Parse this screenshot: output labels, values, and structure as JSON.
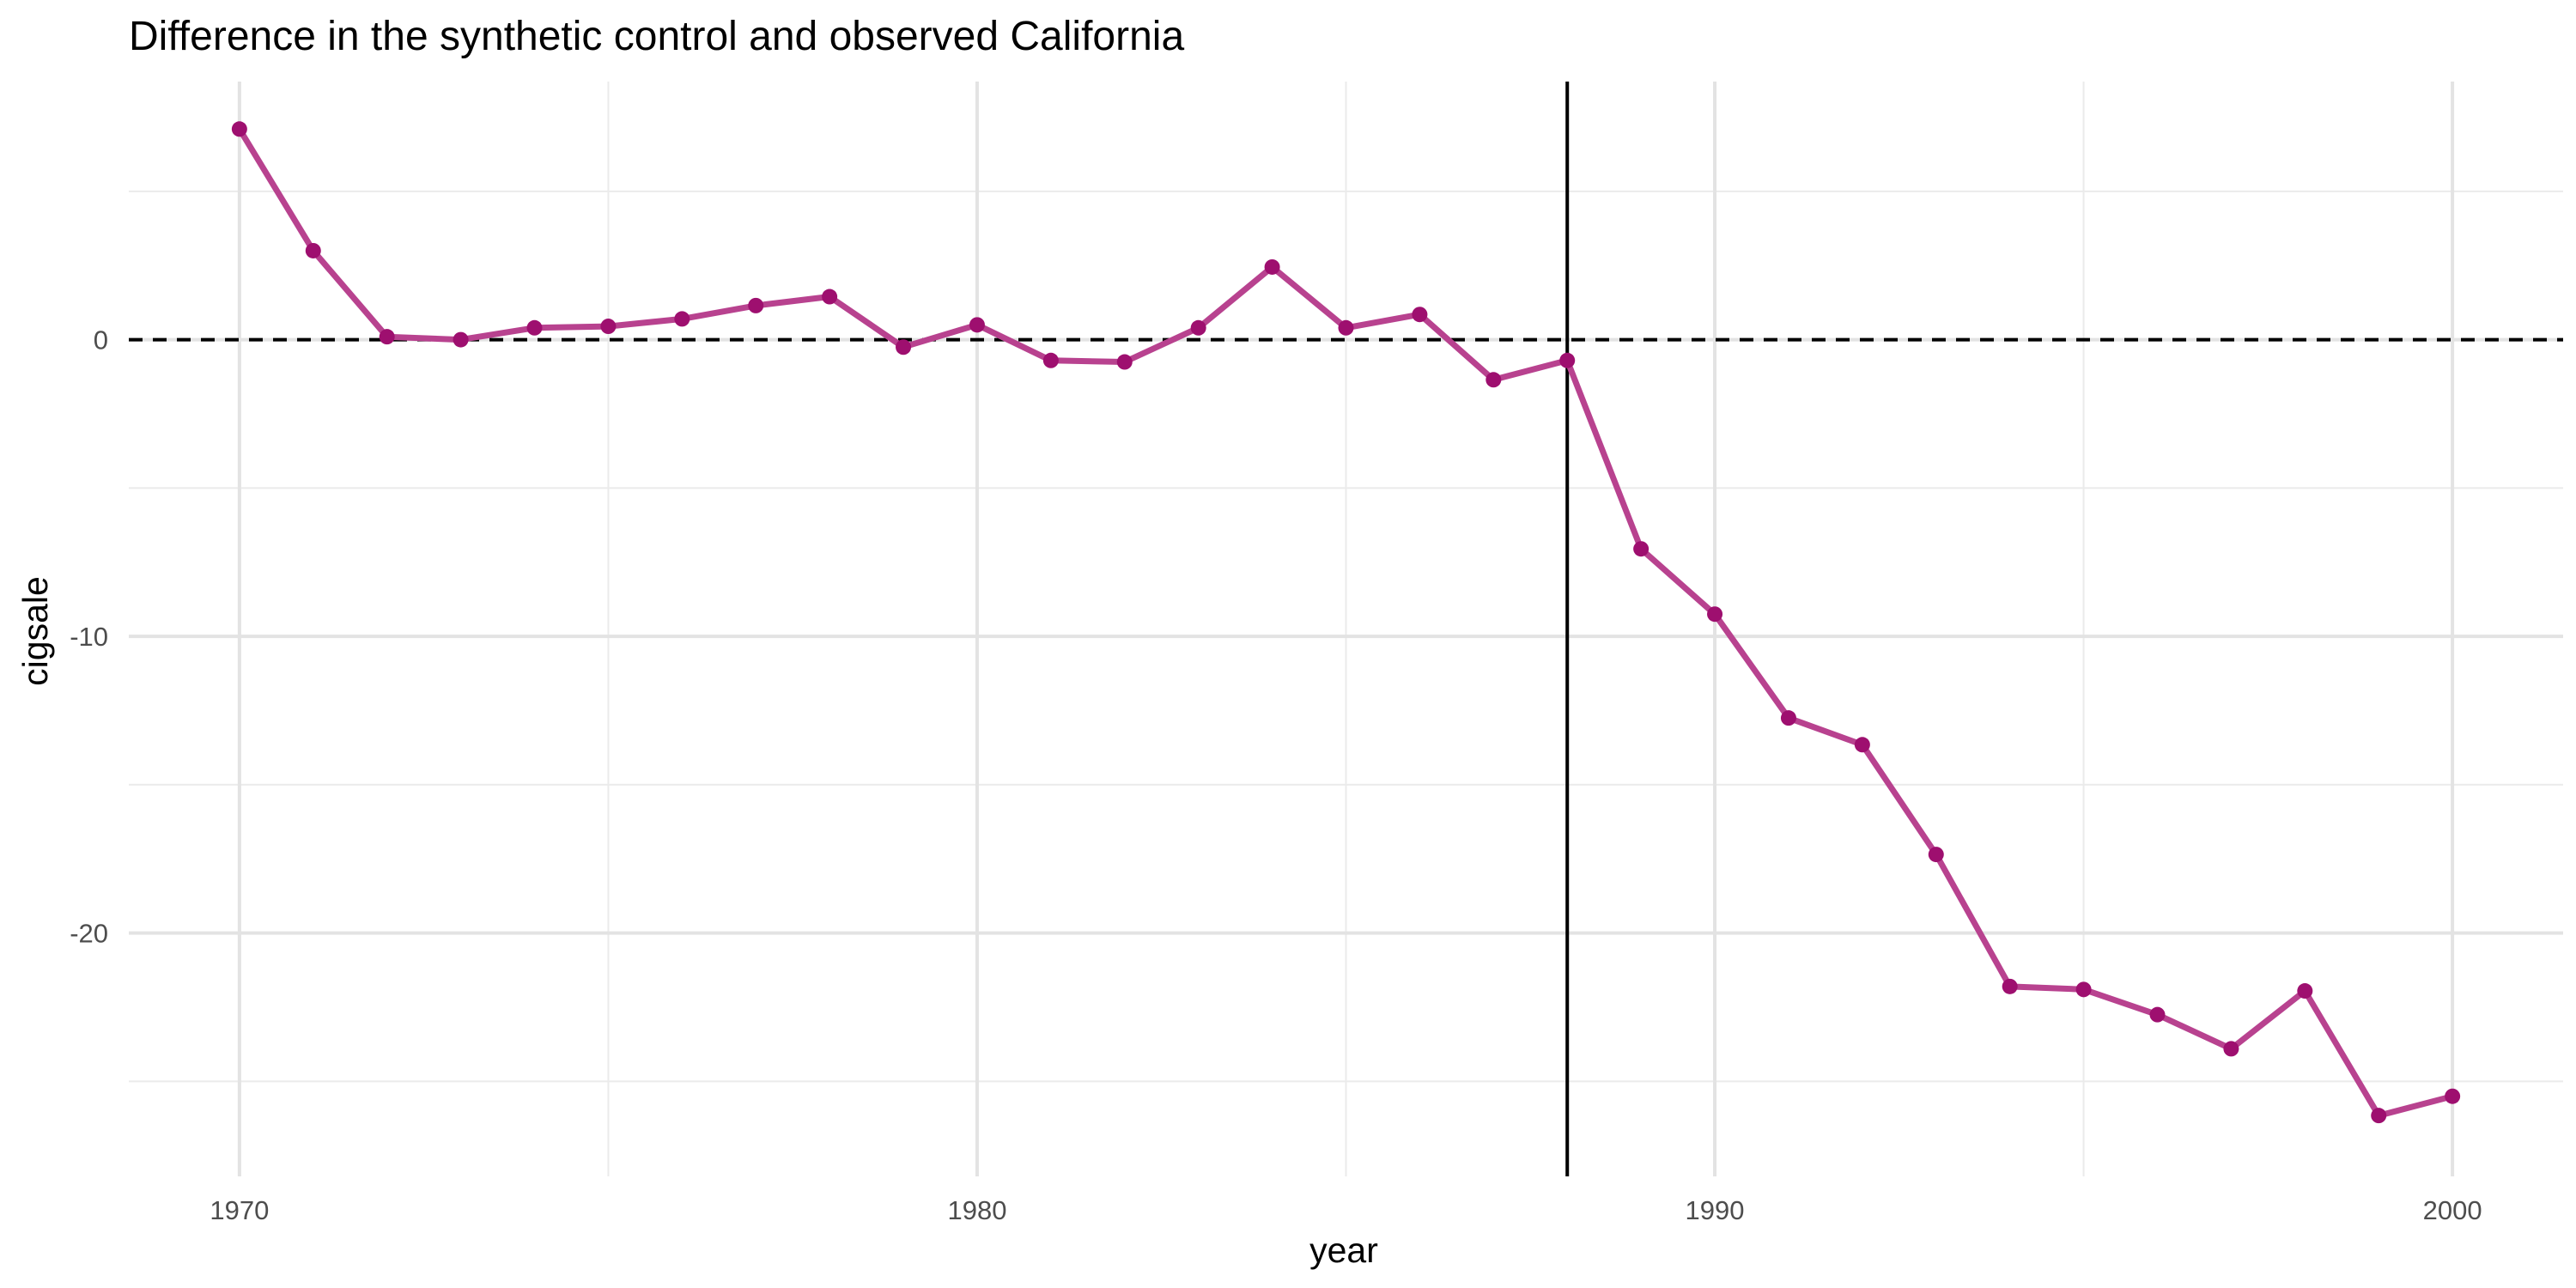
{
  "chart_data": {
    "type": "line",
    "title": "Difference in the synthetic control and observed California",
    "xlabel": "year",
    "ylabel": "cigsale",
    "xlim": [
      1968.5,
      2001.5
    ],
    "ylim": [
      -28.2,
      8.7
    ],
    "x_ticks": [
      1970,
      1980,
      1990,
      2000
    ],
    "x_tick_labels": [
      "1970",
      "1980",
      "1990",
      "2000"
    ],
    "y_ticks": [
      0,
      -10,
      -20
    ],
    "y_tick_labels": [
      "0",
      "-10",
      "-20"
    ],
    "x_minor_gridlines": [
      1975,
      1985,
      1995
    ],
    "y_minor_gridlines": [
      5,
      -5,
      -15,
      -25
    ],
    "grid": true,
    "reference_lines": {
      "horizontal_dashed_y": 0,
      "vertical_solid_x": 1988
    },
    "series": [
      {
        "color": "#9e0f6f",
        "line_color": "#b8428f",
        "x": [
          1970,
          1971,
          1972,
          1973,
          1974,
          1975,
          1976,
          1977,
          1978,
          1979,
          1980,
          1981,
          1982,
          1983,
          1984,
          1985,
          1986,
          1987,
          1988,
          1989,
          1990,
          1991,
          1992,
          1993,
          1994,
          1995,
          1996,
          1997,
          1998,
          1999,
          2000
        ],
        "values": [
          7.1,
          3.0,
          0.1,
          0.0,
          0.4,
          0.45,
          0.7,
          1.15,
          1.45,
          -0.25,
          0.5,
          -0.7,
          -0.75,
          0.4,
          2.45,
          0.4,
          0.85,
          -1.35,
          -0.7,
          -7.05,
          -9.25,
          -12.75,
          -13.65,
          -17.35,
          -21.8,
          -21.9,
          -22.75,
          -23.9,
          -21.95,
          -26.15,
          -25.5
        ]
      }
    ]
  }
}
